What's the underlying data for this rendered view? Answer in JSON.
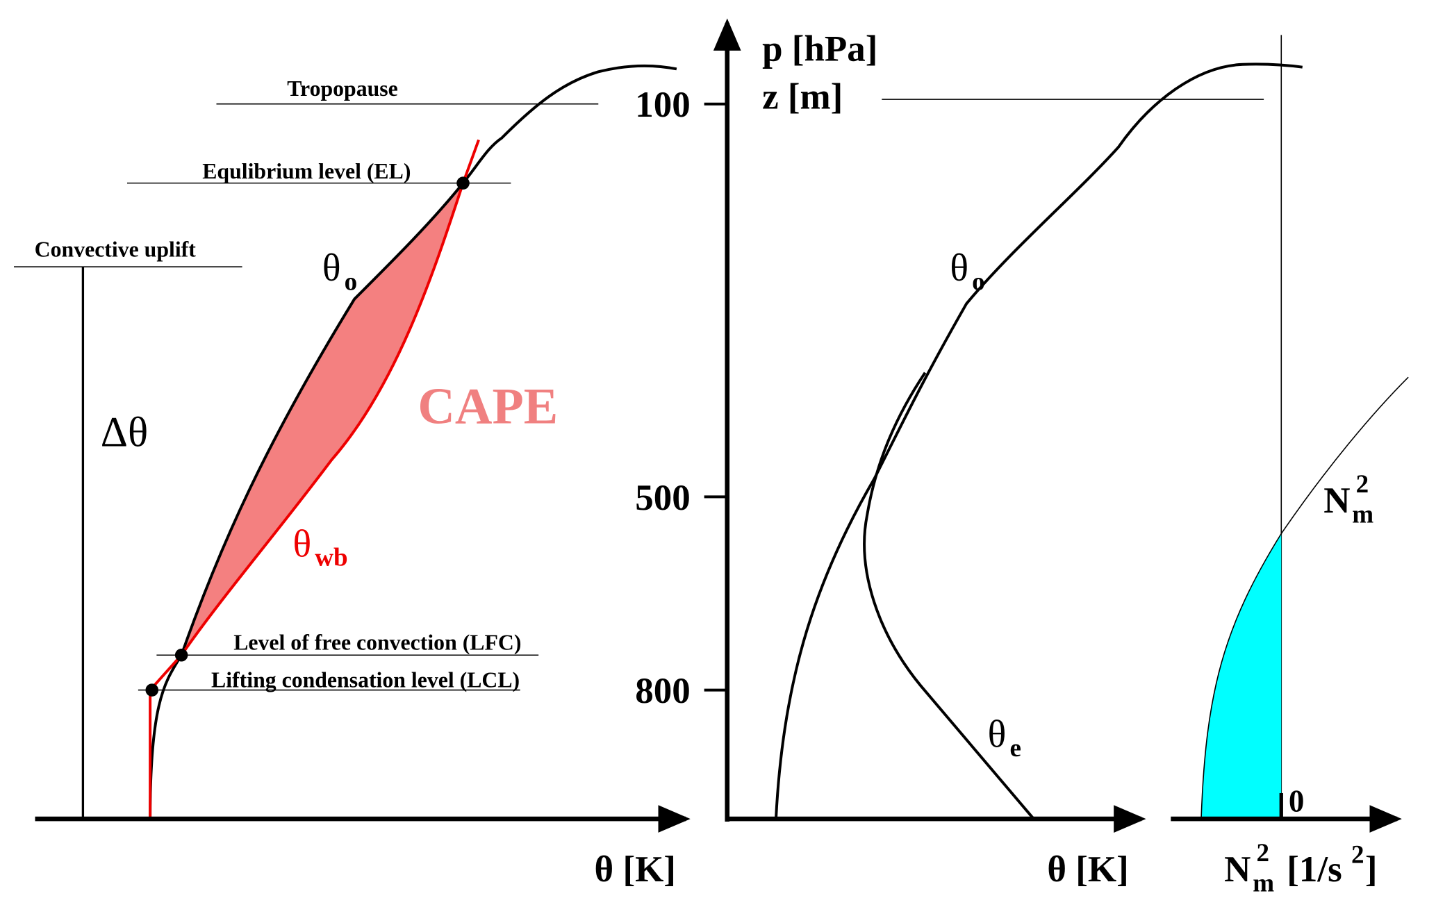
{
  "left": {
    "levels": {
      "tropopause": "Tropopause",
      "el": "Equlibrium level (EL)",
      "uplift": "Convective uplift",
      "lfc": "Level of free convection (LFC)",
      "lcl": "Lifting condensation level (LCL)"
    },
    "delta": "Δθ",
    "cape": "CAPE",
    "theta_o": {
      "symbol": "θ",
      "sub": "o"
    },
    "theta_wb": {
      "symbol": "θ",
      "sub": "wb"
    },
    "x_axis": "θ [K]"
  },
  "middle": {
    "y_axis": [
      "p [hPa]",
      "z [m]"
    ],
    "pressure_ticks": [
      100,
      500,
      800
    ],
    "theta_o": {
      "symbol": "θ",
      "sub": "o"
    },
    "theta_e": {
      "symbol": "θ",
      "sub": "e"
    },
    "x_axis": "θ [K]"
  },
  "right": {
    "curve_label": {
      "symbol": "N",
      "sub": "m",
      "sup": "2"
    },
    "zero": 0,
    "x_axis": {
      "symbol": "N",
      "sub": "m",
      "sup": "2",
      "unit": "[1/s",
      "unit_sup": "2",
      "unit_close": "]"
    }
  }
}
